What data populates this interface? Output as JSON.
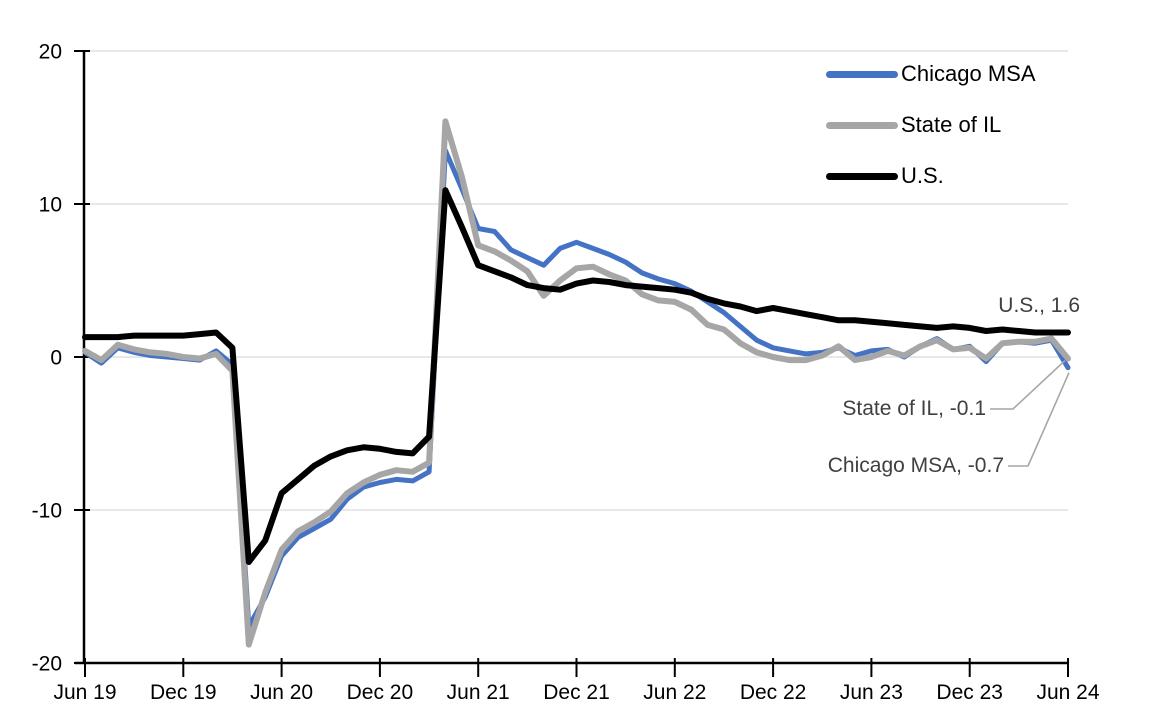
{
  "chart_data": {
    "type": "line",
    "title": "",
    "frequency": "monthly",
    "x_start": "Jun 2019",
    "x_end": "Jun 2024",
    "n_points": 61,
    "x_tick_labels": [
      "Jun 19",
      "Dec 19",
      "Jun 20",
      "Dec 20",
      "Jun 21",
      "Dec 21",
      "Jun 22",
      "Dec 22",
      "Jun 23",
      "Dec 23",
      "Jun 24"
    ],
    "y_tick_labels": [
      "20",
      "10",
      "0",
      "-10",
      "-20"
    ],
    "y_ticks": [
      20,
      10,
      0,
      -10,
      -20
    ],
    "ylim": [
      -20,
      20
    ],
    "gridlines_at": [
      20,
      10,
      0,
      -10
    ],
    "grid": "horizontal",
    "legend_position": "top-right-inside",
    "series": [
      {
        "name": "Chicago MSA",
        "color": "#4472C4",
        "values": [
          0.3,
          -0.4,
          0.6,
          0.3,
          0.1,
          0.0,
          -0.1,
          -0.2,
          0.4,
          -0.5,
          -17.6,
          -15.7,
          -13.0,
          -11.8,
          -11.2,
          -10.6,
          -9.3,
          -8.5,
          -8.2,
          -8.0,
          -8.1,
          -7.5,
          13.5,
          11.0,
          8.4,
          8.2,
          7.0,
          6.5,
          6.0,
          7.1,
          7.5,
          7.1,
          6.7,
          6.2,
          5.5,
          5.1,
          4.8,
          4.3,
          3.6,
          2.9,
          2.0,
          1.1,
          0.6,
          0.4,
          0.2,
          0.3,
          0.6,
          0.1,
          0.4,
          0.5,
          0.0,
          0.7,
          1.2,
          0.5,
          0.7,
          -0.3,
          0.9,
          1.0,
          0.9,
          1.1,
          -0.7
        ]
      },
      {
        "name": "State of IL",
        "color": "#A6A6A6",
        "values": [
          0.4,
          -0.2,
          0.8,
          0.5,
          0.3,
          0.2,
          0.0,
          -0.1,
          0.2,
          -0.9,
          -18.8,
          -15.4,
          -12.6,
          -11.4,
          -10.8,
          -10.1,
          -8.9,
          -8.2,
          -7.7,
          -7.4,
          -7.5,
          -6.9,
          15.4,
          11.8,
          7.3,
          6.9,
          6.3,
          5.6,
          4.0,
          5.0,
          5.8,
          5.9,
          5.4,
          5.0,
          4.1,
          3.7,
          3.6,
          3.1,
          2.1,
          1.8,
          0.9,
          0.3,
          0.0,
          -0.2,
          -0.2,
          0.1,
          0.7,
          -0.2,
          0.0,
          0.4,
          0.1,
          0.7,
          1.1,
          0.5,
          0.6,
          -0.1,
          0.9,
          1.0,
          1.0,
          1.2,
          -0.1
        ]
      },
      {
        "name": "U.S.",
        "color": "#000000",
        "values": [
          1.3,
          1.3,
          1.3,
          1.4,
          1.4,
          1.4,
          1.4,
          1.5,
          1.6,
          0.6,
          -13.4,
          -12.0,
          -8.9,
          -8.0,
          -7.1,
          -6.5,
          -6.1,
          -5.9,
          -6.0,
          -6.2,
          -6.3,
          -5.2,
          10.9,
          8.5,
          6.0,
          5.6,
          5.2,
          4.7,
          4.5,
          4.4,
          4.8,
          5.0,
          4.9,
          4.7,
          4.6,
          4.5,
          4.4,
          4.2,
          3.8,
          3.5,
          3.3,
          3.0,
          3.2,
          3.0,
          2.8,
          2.6,
          2.4,
          2.4,
          2.3,
          2.2,
          2.1,
          2.0,
          1.9,
          2.0,
          1.9,
          1.7,
          1.8,
          1.7,
          1.6,
          1.6,
          1.6
        ]
      }
    ],
    "annotations": [
      {
        "text": "U.S., 1.6",
        "series": "U.S.",
        "value": 1.6,
        "leader_line": false
      },
      {
        "text": "State of IL, -0.1",
        "series": "State of IL",
        "value": -0.1,
        "leader_line": true
      },
      {
        "text": "Chicago MSA, -0.7",
        "series": "Chicago MSA",
        "value": -0.7,
        "leader_line": true
      }
    ],
    "colors": {
      "axis": "#000000",
      "gridline": "#D9D9D9",
      "annotation_text": "#404040",
      "leader_line": "#A6A6A6",
      "background": "#FFFFFF"
    }
  }
}
